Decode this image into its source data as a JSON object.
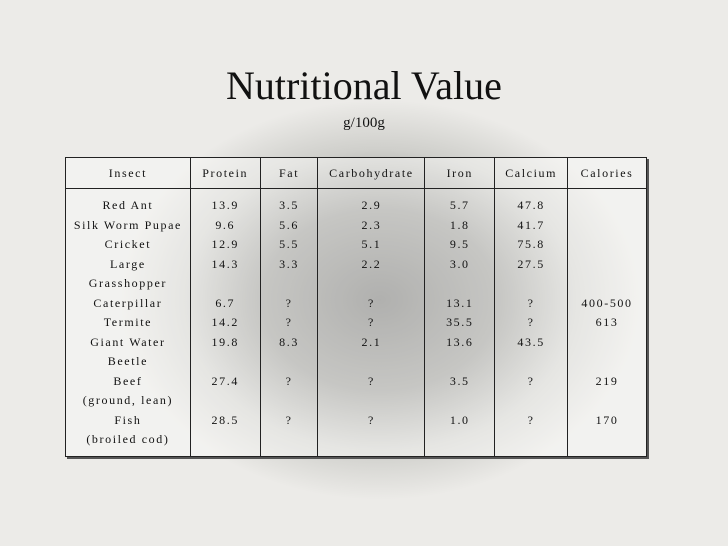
{
  "title": "Nutritional Value",
  "subtitle": "g/100g",
  "table": {
    "header": [
      "Insect",
      "Protein",
      "Fat",
      "Carbohydrate",
      "Iron",
      "Calcium",
      "Calories"
    ],
    "rows": [
      {
        "insect": [
          "Red Ant"
        ],
        "values": [
          "13.9",
          "3.5",
          "2.9",
          "5.7",
          "47.8",
          null
        ]
      },
      {
        "insect": [
          "Silk Worm Pupae"
        ],
        "values": [
          "9.6",
          "5.6",
          "2.3",
          "1.8",
          "41.7",
          null
        ]
      },
      {
        "insect": [
          "Cricket"
        ],
        "values": [
          "12.9",
          "5.5",
          "5.1",
          "9.5",
          "75.8",
          null
        ]
      },
      {
        "insect": [
          "Large",
          "Grasshopper"
        ],
        "values": [
          "14.3",
          "3.3",
          "2.2",
          "3.0",
          "27.5",
          null
        ]
      },
      {
        "insect": [
          "Caterpillar"
        ],
        "values": [
          "6.7",
          "?",
          "?",
          "13.1",
          "?",
          "400-500"
        ]
      },
      {
        "insect": [
          "Termite"
        ],
        "values": [
          "14.2",
          "?",
          "?",
          "35.5",
          "?",
          "613"
        ]
      },
      {
        "insect": [
          "Giant Water",
          "Beetle"
        ],
        "values": [
          "19.8",
          "8.3",
          "2.1",
          "13.6",
          "43.5",
          null
        ]
      },
      {
        "insect": [
          "Beef",
          "(ground, lean)"
        ],
        "values": [
          "27.4",
          "?",
          "?",
          "3.5",
          "?",
          "219"
        ]
      },
      {
        "insect": [
          "Fish",
          "(broiled cod)"
        ],
        "values": [
          "28.5",
          "?",
          "?",
          "1.0",
          "?",
          "170"
        ]
      }
    ]
  }
}
